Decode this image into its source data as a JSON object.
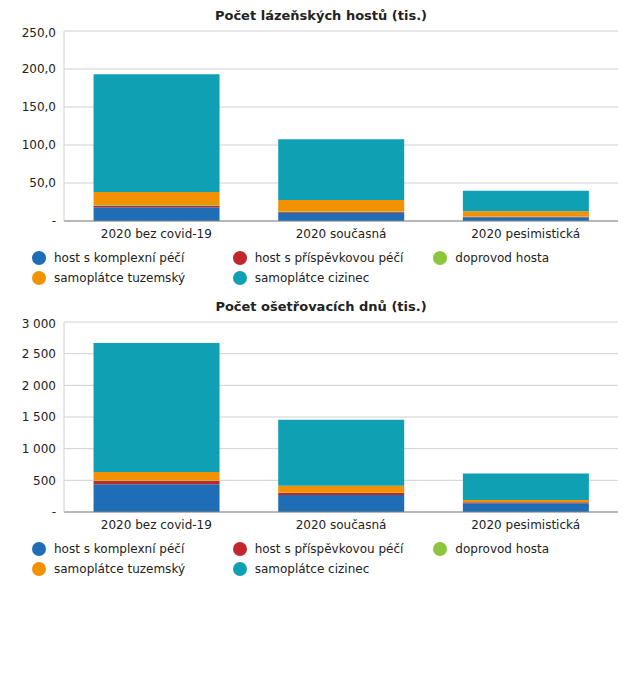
{
  "chart_data": [
    {
      "type": "bar",
      "title": "Počet lázeňských hostů (tis.)",
      "stacked": true,
      "grid": true,
      "legend": "bottom",
      "categories": [
        "2020 bez covid-19",
        "2020 současná",
        "2020 pesimistická"
      ],
      "ylim": [
        0,
        250
      ],
      "yticks": [
        {
          "value": 0,
          "label": "-"
        },
        {
          "value": 50,
          "label": "50,0"
        },
        {
          "value": 100,
          "label": "100,0"
        },
        {
          "value": 150,
          "label": "150,0"
        },
        {
          "value": 200,
          "label": "200,0"
        },
        {
          "value": 250,
          "label": "250,0"
        }
      ],
      "series": [
        {
          "name": "host s komplexní péčí",
          "color": "#1f6db5",
          "values": [
            18,
            11,
            5
          ]
        },
        {
          "name": "host s příspěvkovou péčí",
          "color": "#c1272d",
          "values": [
            2,
            1,
            0.5
          ]
        },
        {
          "name": "doprovod hosta",
          "color": "#8cc63f",
          "values": [
            1,
            0.5,
            0.3
          ]
        },
        {
          "name": "samoplátce tuzemský",
          "color": "#f39200",
          "values": [
            17,
            15,
            7
          ]
        },
        {
          "name": "samoplátce cizinec",
          "color": "#0fa0b4",
          "values": [
            155,
            80,
            27
          ]
        }
      ]
    },
    {
      "type": "bar",
      "title": "Počet ošetřovacích dnů (tis.)",
      "stacked": true,
      "grid": true,
      "legend": "bottom",
      "categories": [
        "2020 bez covid-19",
        "2020 současná",
        "2020 pesimistická"
      ],
      "ylim": [
        0,
        3000
      ],
      "yticks": [
        {
          "value": 0,
          "label": "-"
        },
        500,
        {
          "value": 1000,
          "label": "1 000"
        },
        {
          "value": 1500,
          "label": "1 500"
        },
        {
          "value": 2000,
          "label": "2 000"
        },
        {
          "value": 2500,
          "label": "2 500"
        },
        {
          "value": 3000,
          "label": "3 000"
        }
      ],
      "series": [
        {
          "name": "host s komplexní péčí",
          "color": "#1f6db5",
          "values": [
            440,
            270,
            140
          ]
        },
        {
          "name": "host s příspěvkovou péčí",
          "color": "#c1272d",
          "values": [
            50,
            30,
            15
          ]
        },
        {
          "name": "doprovod hosta",
          "color": "#8cc63f",
          "values": [
            10,
            5,
            3
          ]
        },
        {
          "name": "samoplátce tuzemský",
          "color": "#f39200",
          "values": [
            130,
            110,
            30
          ]
        },
        {
          "name": "samoplátce cizinec",
          "color": "#0fa0b4",
          "values": [
            2040,
            1040,
            420
          ]
        }
      ]
    }
  ]
}
